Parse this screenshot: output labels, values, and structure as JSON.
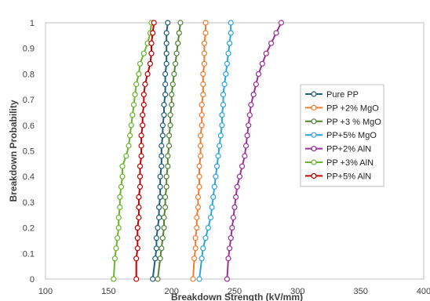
{
  "chart_data": {
    "type": "scatter",
    "title": "",
    "xlabel": "Breakdown Strength (kV/mm)",
    "ylabel": "Breakdown Probability",
    "xlim": [
      100,
      400
    ],
    "ylim": [
      0,
      1
    ],
    "x_ticks": [
      "100",
      "150",
      "200",
      "250",
      "300",
      "350",
      "400"
    ],
    "y_ticks": [
      "0",
      "0.1",
      "0.2",
      "0.3",
      "0.4",
      "0.5",
      "0.6",
      "0.7",
      "0.8",
      "0.9",
      "1"
    ],
    "grid": false,
    "legend_position": "right",
    "series": [
      {
        "name": "Pure PP",
        "color": "#1f5f7a",
        "x": [
          185,
          187,
          188,
          188,
          189,
          190,
          190,
          191,
          191,
          191,
          192,
          192,
          192,
          193,
          193,
          194,
          194,
          195,
          195,
          195,
          196,
          196,
          196,
          196,
          197
        ],
        "y": [
          0,
          0.08,
          0.12,
          0.16,
          0.2,
          0.24,
          0.28,
          0.32,
          0.36,
          0.4,
          0.44,
          0.48,
          0.52,
          0.56,
          0.6,
          0.64,
          0.68,
          0.72,
          0.76,
          0.8,
          0.84,
          0.88,
          0.92,
          0.96,
          1
        ]
      },
      {
        "name": "PP +2% MgO",
        "color": "#ed7d31",
        "x": [
          217,
          218,
          219,
          219,
          220,
          220,
          221,
          221,
          222,
          222,
          222,
          223,
          223,
          223,
          224,
          224,
          224,
          225,
          225,
          225,
          226,
          226,
          226,
          227,
          227
        ],
        "y": [
          0,
          0.08,
          0.12,
          0.16,
          0.2,
          0.24,
          0.28,
          0.32,
          0.36,
          0.4,
          0.44,
          0.48,
          0.52,
          0.56,
          0.6,
          0.64,
          0.68,
          0.72,
          0.76,
          0.8,
          0.84,
          0.88,
          0.92,
          0.96,
          1
        ]
      },
      {
        "name": "PP +3 % MgO",
        "color": "#548235",
        "x": [
          189,
          191,
          192,
          193,
          194,
          194,
          195,
          195,
          196,
          196,
          197,
          197,
          198,
          198,
          199,
          199,
          200,
          200,
          201,
          202,
          203,
          204,
          205,
          206,
          207
        ],
        "y": [
          0,
          0.08,
          0.12,
          0.16,
          0.2,
          0.24,
          0.28,
          0.32,
          0.36,
          0.4,
          0.44,
          0.48,
          0.52,
          0.56,
          0.6,
          0.64,
          0.68,
          0.72,
          0.76,
          0.8,
          0.84,
          0.88,
          0.92,
          0.96,
          1
        ]
      },
      {
        "name": "PP+5% MgO",
        "color": "#2ea3d9",
        "x": [
          222,
          224,
          225,
          227,
          229,
          231,
          232,
          233,
          234,
          235,
          236,
          237,
          238,
          239,
          240,
          240,
          241,
          241,
          242,
          243,
          244,
          245,
          246,
          247,
          247
        ],
        "y": [
          0,
          0.08,
          0.12,
          0.16,
          0.2,
          0.24,
          0.28,
          0.32,
          0.36,
          0.4,
          0.44,
          0.48,
          0.52,
          0.56,
          0.6,
          0.64,
          0.68,
          0.72,
          0.76,
          0.8,
          0.84,
          0.88,
          0.92,
          0.96,
          1
        ]
      },
      {
        "name": "PP+2% AlN",
        "color": "#9b2f98",
        "x": [
          244,
          245,
          246,
          247,
          248,
          249,
          250,
          251,
          252,
          254,
          256,
          258,
          259,
          260,
          261,
          262,
          263,
          265,
          267,
          269,
          272,
          275,
          279,
          283,
          287
        ],
        "y": [
          0,
          0.08,
          0.12,
          0.16,
          0.2,
          0.24,
          0.28,
          0.32,
          0.36,
          0.4,
          0.44,
          0.48,
          0.52,
          0.56,
          0.6,
          0.64,
          0.68,
          0.72,
          0.76,
          0.8,
          0.84,
          0.88,
          0.92,
          0.96,
          1
        ]
      },
      {
        "name": "PP +3% AlN",
        "color": "#6ab42d",
        "x": [
          154,
          155,
          156,
          157,
          158,
          158,
          159,
          159,
          160,
          161,
          161,
          164,
          166,
          167,
          168,
          169,
          170,
          171,
          172,
          174,
          175,
          178,
          181,
          183,
          184
        ],
        "y": [
          0,
          0.08,
          0.12,
          0.16,
          0.2,
          0.24,
          0.28,
          0.32,
          0.36,
          0.4,
          0.44,
          0.48,
          0.52,
          0.56,
          0.6,
          0.64,
          0.68,
          0.72,
          0.76,
          0.8,
          0.84,
          0.88,
          0.92,
          0.96,
          1
        ]
      },
      {
        "name": "PP+5% AlN",
        "color": "#c00000",
        "x": [
          172,
          172,
          173,
          173,
          173,
          174,
          174,
          174,
          175,
          175,
          175,
          176,
          176,
          176,
          177,
          177,
          178,
          178,
          179,
          181,
          183,
          184,
          184,
          185,
          186
        ],
        "y": [
          0,
          0.08,
          0.12,
          0.16,
          0.2,
          0.24,
          0.28,
          0.32,
          0.36,
          0.4,
          0.44,
          0.48,
          0.52,
          0.56,
          0.6,
          0.64,
          0.68,
          0.72,
          0.76,
          0.8,
          0.84,
          0.88,
          0.92,
          0.96,
          1
        ]
      }
    ]
  }
}
